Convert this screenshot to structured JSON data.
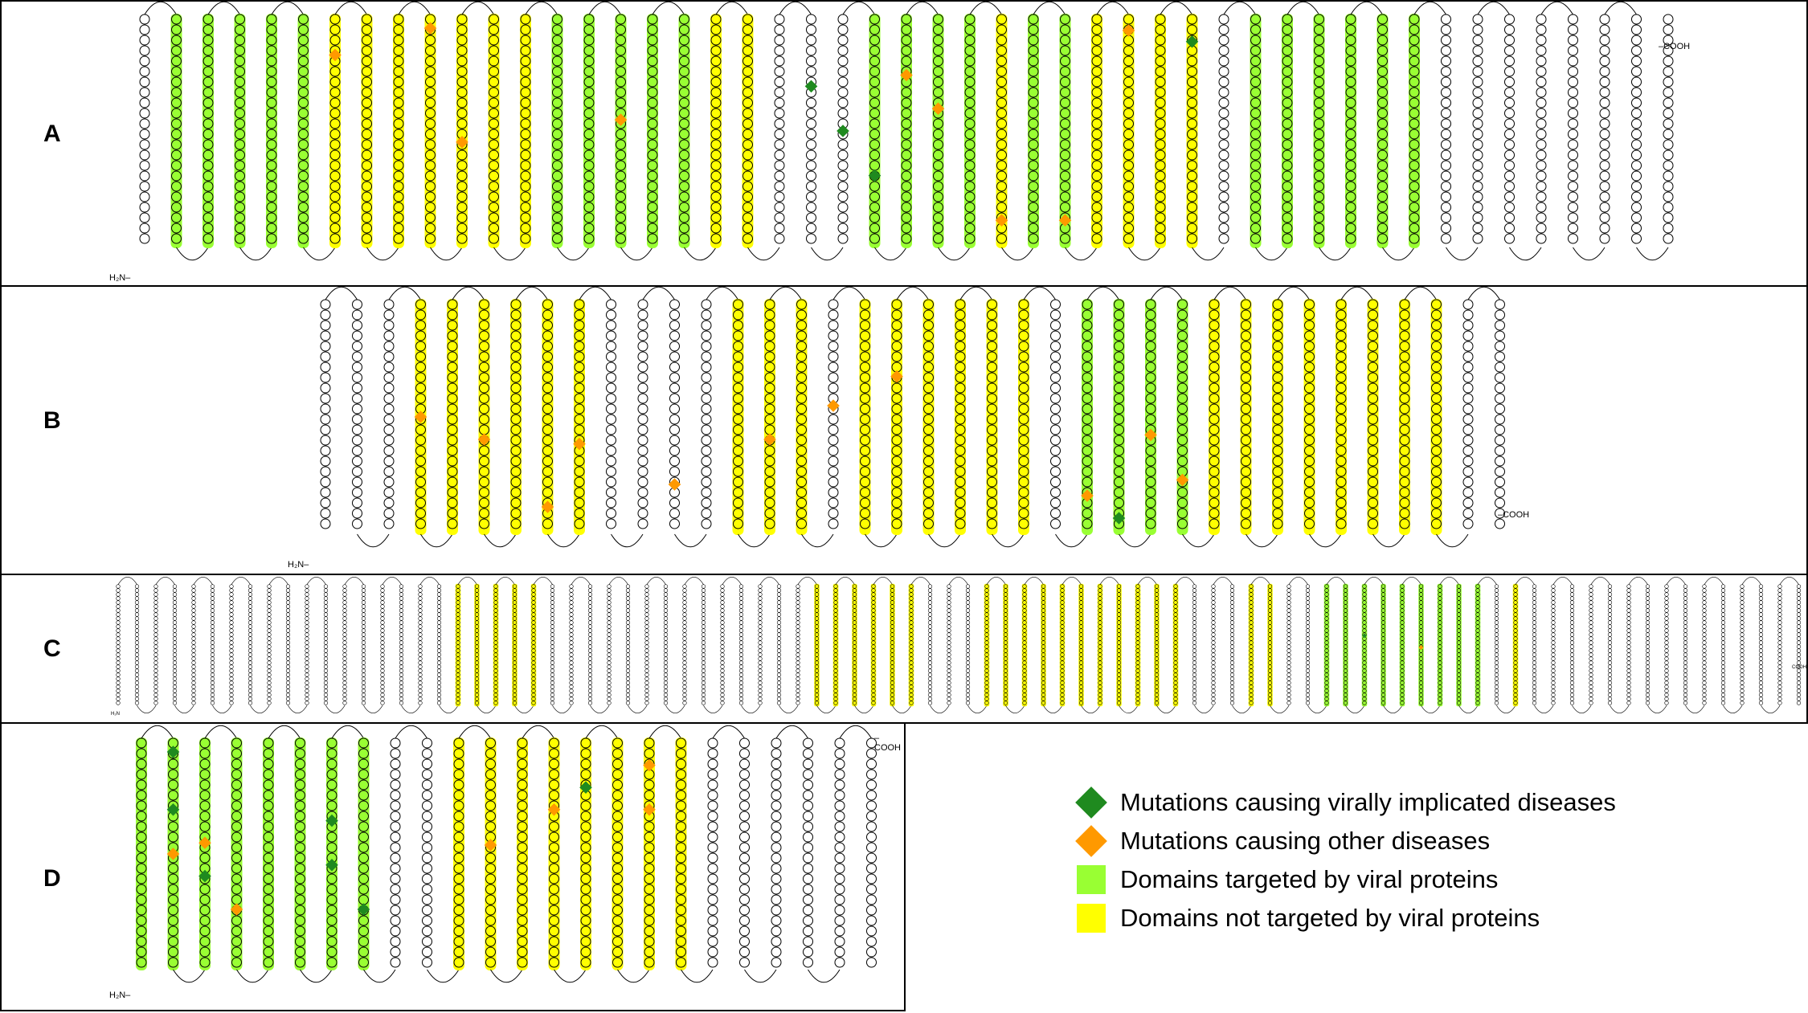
{
  "panels": [
    {
      "id": "A",
      "label": "A",
      "n_term": "H₂N–",
      "c_term": "–COOH"
    },
    {
      "id": "B",
      "label": "B",
      "n_term": "H₂N–",
      "c_term": "–COOH"
    },
    {
      "id": "C",
      "label": "C",
      "n_term": "H₂N",
      "c_term": "COOH"
    },
    {
      "id": "D",
      "label": "D",
      "n_term": "H₂N–",
      "c_term": "–COOH"
    }
  ],
  "colors": {
    "viral_domain": "#99ff33",
    "other_domain": "#ffff00",
    "viral_mutation": "#1f8a1f",
    "other_mutation": "#ff9900",
    "plain_residue": "#ffffff"
  },
  "legend": [
    {
      "shape": "diamond",
      "color": "#1f8a1f",
      "label": "Mutations causing virally implicated diseases"
    },
    {
      "shape": "diamond",
      "color": "#ff9900",
      "label": "Mutations causing other diseases"
    },
    {
      "shape": "square",
      "color": "#99ff33",
      "label": "Domains targeted by viral proteins"
    },
    {
      "shape": "square",
      "color": "#ffff00",
      "label": "Domains not targeted by viral proteins"
    }
  ]
}
